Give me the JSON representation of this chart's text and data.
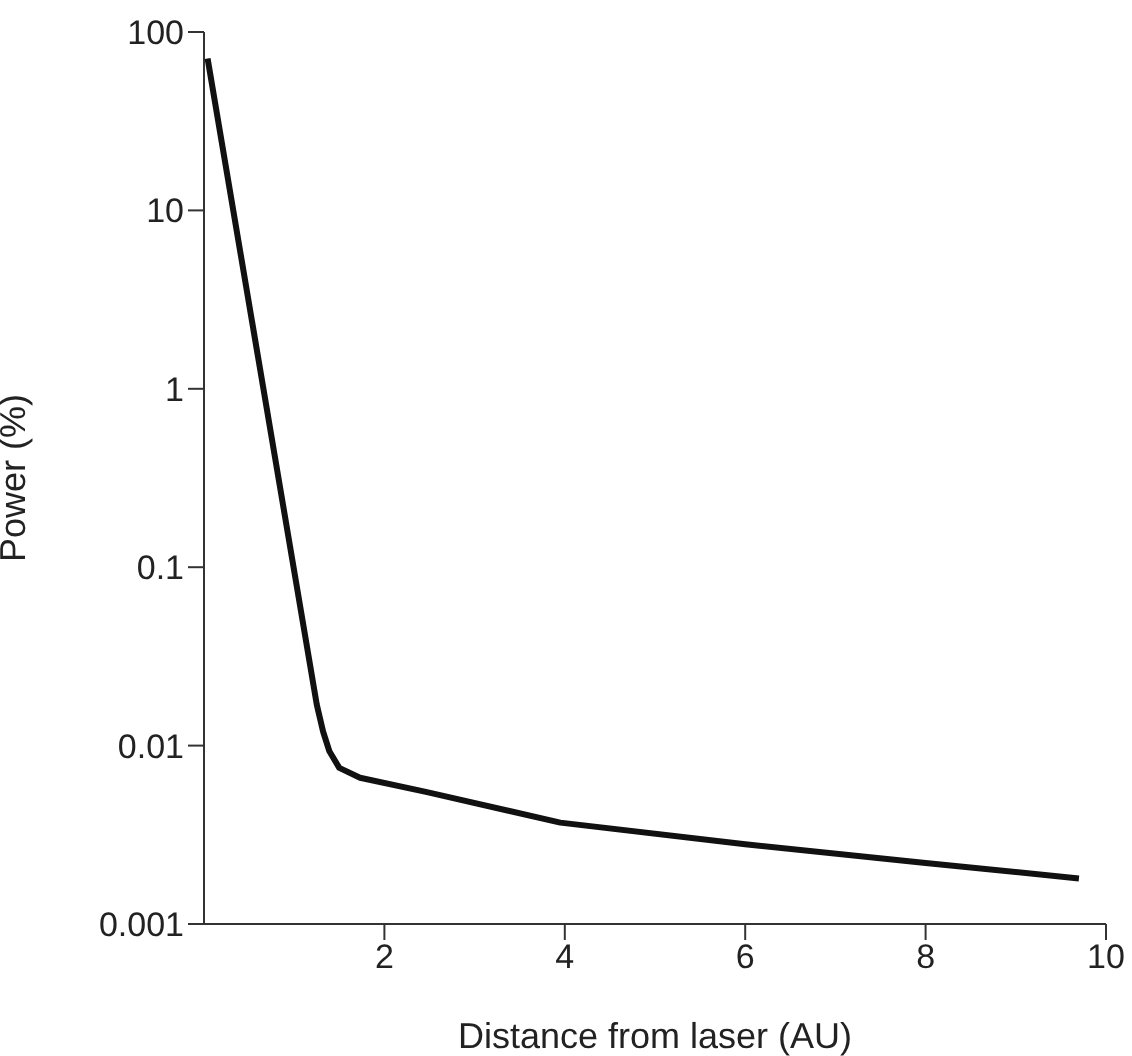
{
  "chart_data": {
    "type": "line",
    "xlabel": "Distance from laser (AU)",
    "ylabel": "Power (%)",
    "log": "y",
    "xlim": [
      0,
      10
    ],
    "xticks": [
      2,
      4,
      6,
      8,
      10
    ],
    "ylim": [
      0.001,
      100
    ],
    "yticks": [
      0.001,
      0.01,
      0.1,
      1,
      10,
      100
    ],
    "grid": false,
    "legend": false,
    "marker": "none",
    "line_style": "solid",
    "series": [
      {
        "color": "#111111",
        "x": [
          0.04,
          1.25,
          1.32,
          1.39,
          1.5,
          1.73,
          2.46,
          3.95,
          6.0,
          8.0,
          9.7
        ],
        "values": [
          71,
          0.017,
          0.012,
          0.0093,
          0.0075,
          0.0066,
          0.0055,
          0.0037,
          0.0028,
          0.0022,
          0.0018
        ]
      }
    ]
  }
}
